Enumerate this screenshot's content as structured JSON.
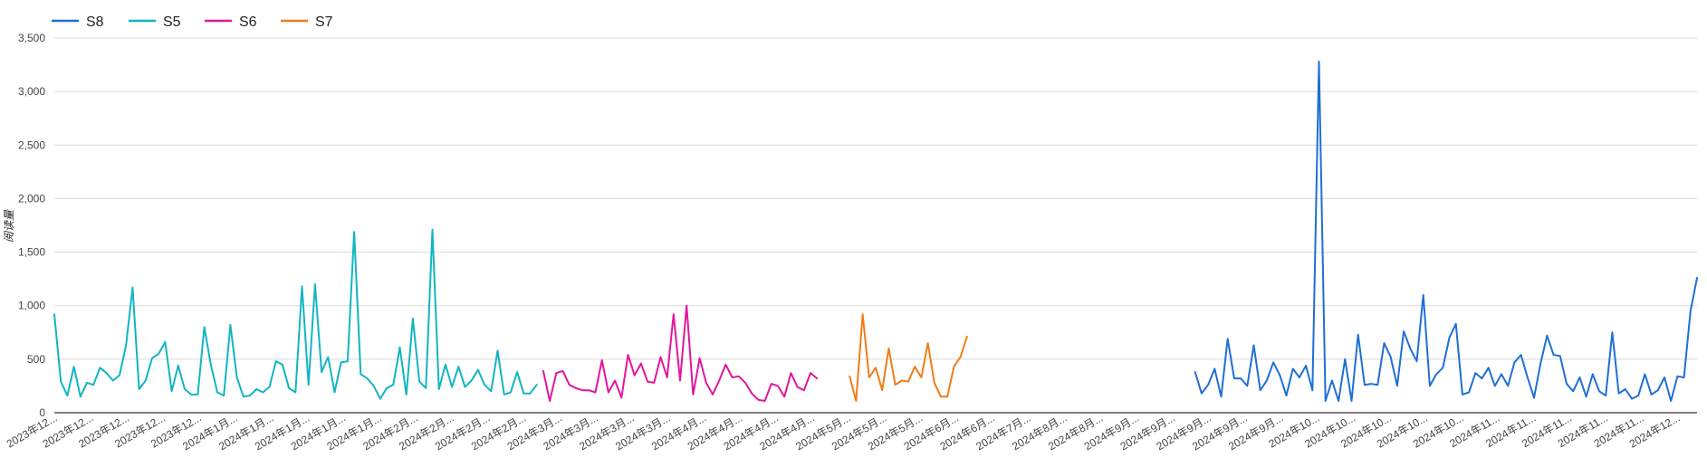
{
  "chart_data": {
    "type": "line",
    "ylabel": "阅读量",
    "xlabel": "",
    "ylim": [
      0,
      3500
    ],
    "yticks": [
      "0",
      "500",
      "1,000",
      "1,500",
      "2,000",
      "2,500",
      "3,000",
      "3,500"
    ],
    "grid": true,
    "legend_position": "top-left",
    "x_tick_labels": [
      "2023年12...",
      "2023年12...",
      "2023年12...",
      "2023年12...",
      "2023年12...",
      "2024年1月...",
      "2024年1月...",
      "2024年1月...",
      "2024年1月...",
      "2024年1月...",
      "2024年2月...",
      "2024年2月...",
      "2024年2月...",
      "2024年2月...",
      "2024年3月...",
      "2024年3月...",
      "2024年3月...",
      "2024年3月...",
      "2024年4月...",
      "2024年4月...",
      "2024年4月...",
      "2024年4月...",
      "2024年5月...",
      "2024年5月...",
      "2024年5月...",
      "2024年6月...",
      "2024年6月...",
      "2024年7月...",
      "2024年8月...",
      "2024年8月...",
      "2024年9月...",
      "2024年9月...",
      "2024年9月...",
      "2024年9月...",
      "2024年9月...",
      "2024年10...",
      "2024年10...",
      "2024年10...",
      "2024年10...",
      "2024年10...",
      "2024年11...",
      "2024年11...",
      "2024年11...",
      "2024年11...",
      "2024年11...",
      "2024年12..."
    ],
    "series": [
      {
        "name": "S8",
        "color": "#1f6fd6",
        "start": 175,
        "values": [
          380,
          180,
          260,
          410,
          150,
          690,
          320,
          320,
          250,
          630,
          210,
          300,
          470,
          350,
          160,
          410,
          330,
          440,
          210,
          3280,
          110,
          300,
          110,
          500,
          110,
          730,
          260,
          270,
          260,
          650,
          520,
          250,
          760,
          600,
          480,
          1100,
          250,
          360,
          420,
          700,
          830,
          170,
          190,
          370,
          320,
          420,
          250,
          360,
          250,
          470,
          540,
          330,
          140,
          460,
          720,
          540,
          530,
          270,
          200,
          330,
          150,
          360,
          200,
          160,
          750,
          180,
          220,
          130,
          160,
          360,
          170,
          210,
          330,
          110,
          340,
          330,
          950,
          1260
        ]
      },
      {
        "name": "S5",
        "color": "#12b5c2",
        "start": 0,
        "values": [
          920,
          290,
          160,
          430,
          150,
          280,
          260,
          420,
          370,
          300,
          350,
          630,
          1170,
          220,
          300,
          510,
          550,
          660,
          200,
          440,
          220,
          170,
          170,
          800,
          450,
          190,
          160,
          820,
          330,
          150,
          160,
          220,
          190,
          240,
          480,
          450,
          230,
          190,
          1180,
          260,
          1200,
          380,
          520,
          190,
          470,
          480,
          1690,
          360,
          320,
          250,
          130,
          230,
          260,
          610,
          170,
          880,
          290,
          230,
          1710,
          220,
          450,
          240,
          430,
          240,
          300,
          400,
          260,
          200,
          580,
          170,
          190,
          380,
          180,
          180,
          260
        ]
      },
      {
        "name": "S6",
        "color": "#e3169b",
        "start": 75,
        "values": [
          390,
          110,
          370,
          390,
          260,
          230,
          210,
          210,
          190,
          490,
          190,
          300,
          140,
          540,
          350,
          460,
          290,
          280,
          520,
          330,
          920,
          300,
          1000,
          170,
          510,
          280,
          170,
          300,
          450,
          330,
          340,
          280,
          180,
          120,
          110,
          270,
          250,
          150,
          370,
          240,
          210,
          370,
          320
        ]
      },
      {
        "name": "S7",
        "color": "#f07d19",
        "start": 122,
        "values": [
          340,
          110,
          920,
          330,
          420,
          210,
          600,
          260,
          300,
          290,
          430,
          330,
          650,
          280,
          150,
          150,
          430,
          520,
          710
        ]
      }
    ]
  }
}
